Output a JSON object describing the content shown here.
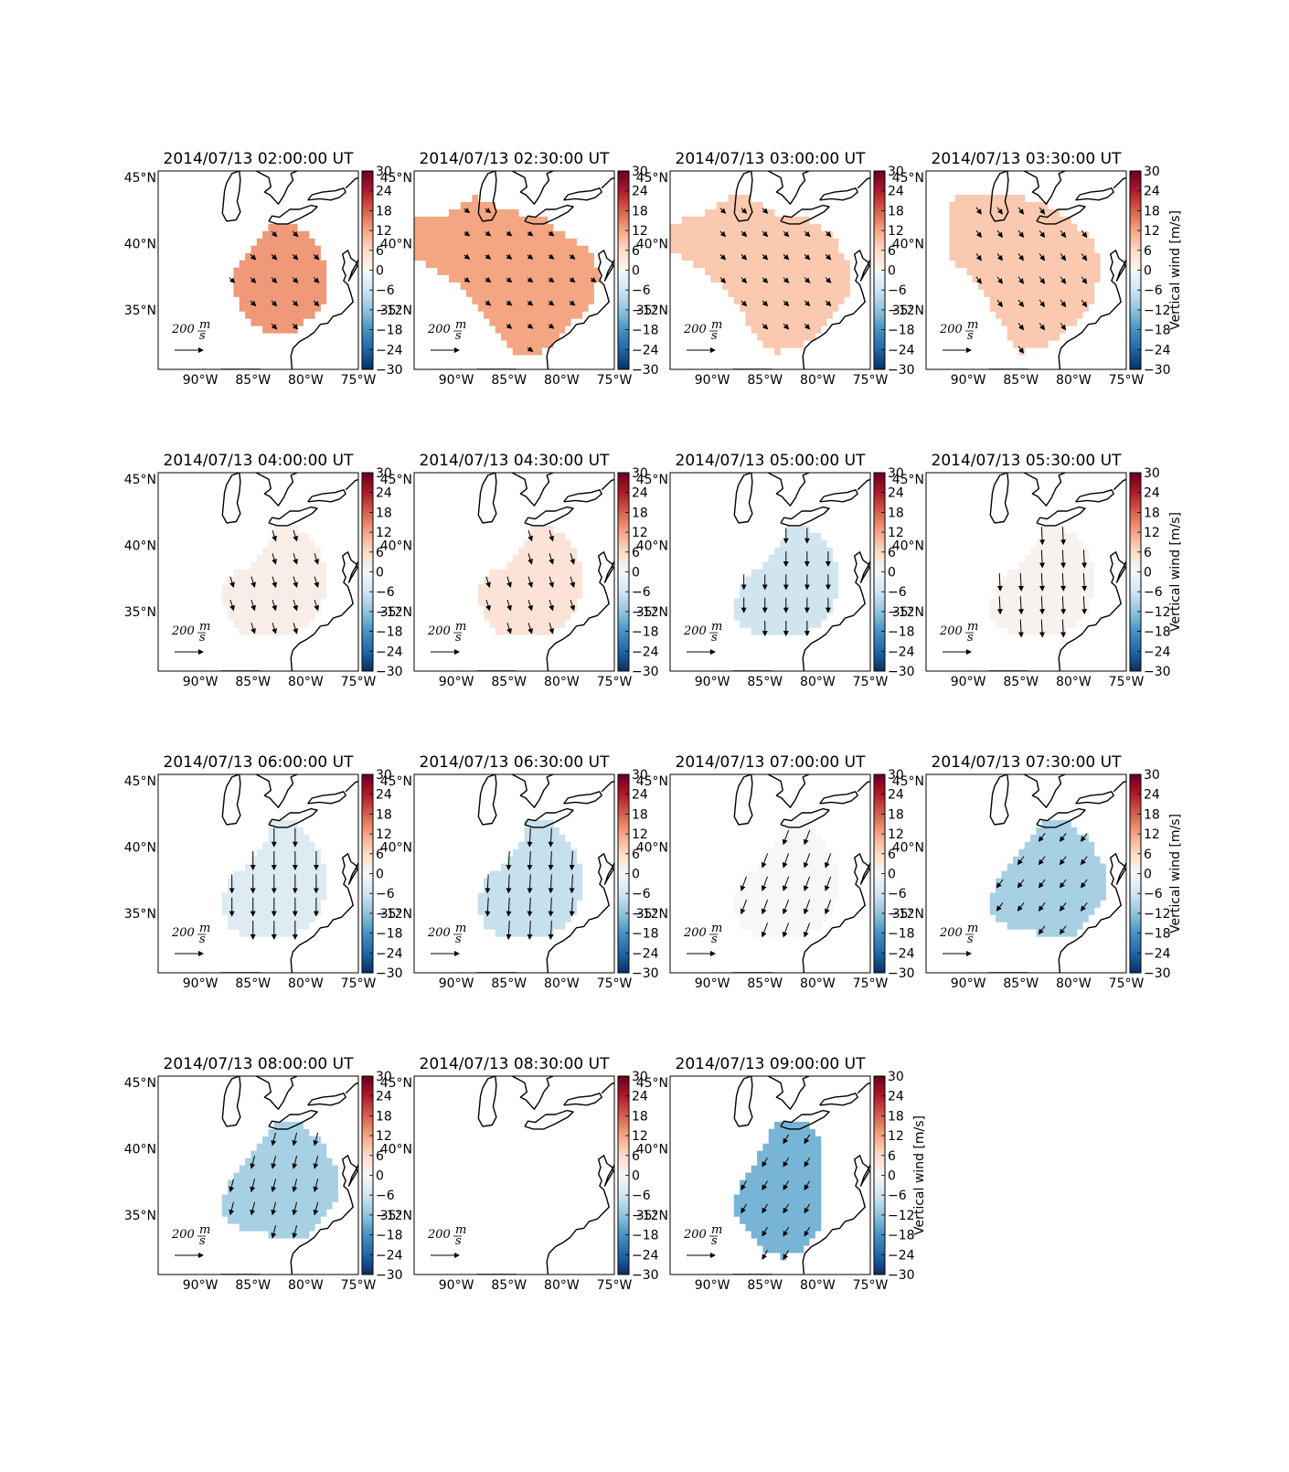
{
  "chart_data": {
    "type": "heatmap",
    "panel_layout": {
      "rows": 4,
      "cols": 4
    },
    "x_ticks": [
      "90°W",
      "85°W",
      "80°W",
      "75°W"
    ],
    "y_ticks": [
      "45°N",
      "40°N",
      "35°N"
    ],
    "lon_range": [
      -94,
      -75
    ],
    "lat_range": [
      30.5,
      45.5
    ],
    "colorbar": {
      "label": "Vertical wind [m/s]",
      "range": [
        -30,
        30
      ],
      "ticks": [
        "30",
        "24",
        "18",
        "12",
        "6",
        "0",
        "−6",
        "−12",
        "−18",
        "−24",
        "−30"
      ],
      "colormap": "RdBu_r",
      "colors": [
        "#053061",
        "#2166ac",
        "#4393c3",
        "#92c5de",
        "#d1e5f0",
        "#f7f7f7",
        "#fddbc7",
        "#f4a582",
        "#d6604d",
        "#b2182b",
        "#67001f"
      ]
    },
    "reference_vector": {
      "value": "200",
      "unit_num": "m",
      "unit_den": "s"
    },
    "panels": [
      {
        "title": "2014/07/13 02:00:00 UT",
        "vertical_wind": 13,
        "arrow_dir": [
          0.7,
          -0.7
        ],
        "arrow_len": 0.4,
        "show_colorbar_label": false
      },
      {
        "title": "2014/07/13 02:30:00 UT",
        "vertical_wind": 12,
        "arrow_dir": [
          0.8,
          -0.6
        ],
        "arrow_len": 0.35,
        "show_colorbar_label": false
      },
      {
        "title": "2014/07/13 03:00:00 UT",
        "vertical_wind": 8,
        "arrow_dir": [
          0.7,
          -0.7
        ],
        "arrow_len": 0.4,
        "show_colorbar_label": false
      },
      {
        "title": "2014/07/13 03:30:00 UT",
        "vertical_wind": 8,
        "arrow_dir": [
          0.6,
          -0.8
        ],
        "arrow_len": 0.45,
        "show_colorbar_label": true
      },
      {
        "title": "2014/07/13 04:00:00 UT",
        "vertical_wind": 2,
        "arrow_dir": [
          0.3,
          -0.95
        ],
        "arrow_len": 0.6,
        "show_colorbar_label": false
      },
      {
        "title": "2014/07/13 04:30:00 UT",
        "vertical_wind": 4,
        "arrow_dir": [
          0.3,
          -0.95
        ],
        "arrow_len": 0.6,
        "show_colorbar_label": false
      },
      {
        "title": "2014/07/13 05:00:00 UT",
        "vertical_wind": -6,
        "arrow_dir": [
          0.0,
          -1.0
        ],
        "arrow_len": 0.8,
        "show_colorbar_label": false
      },
      {
        "title": "2014/07/13 05:30:00 UT",
        "vertical_wind": 1,
        "arrow_dir": [
          0.05,
          -1.0
        ],
        "arrow_len": 0.95,
        "show_colorbar_label": true
      },
      {
        "title": "2014/07/13 06:00:00 UT",
        "vertical_wind": -4,
        "arrow_dir": [
          0.0,
          -1.0
        ],
        "arrow_len": 1.0,
        "show_colorbar_label": false
      },
      {
        "title": "2014/07/13 06:30:00 UT",
        "vertical_wind": -7,
        "arrow_dir": [
          -0.05,
          -1.0
        ],
        "arrow_len": 1.0,
        "show_colorbar_label": false
      },
      {
        "title": "2014/07/13 07:00:00 UT",
        "vertical_wind": 0,
        "arrow_dir": [
          -0.35,
          -0.95
        ],
        "arrow_len": 0.8,
        "show_colorbar_label": false
      },
      {
        "title": "2014/07/13 07:30:00 UT",
        "vertical_wind": -10,
        "arrow_dir": [
          -0.6,
          -0.8
        ],
        "arrow_len": 0.55,
        "show_colorbar_label": true
      },
      {
        "title": "2014/07/13 08:00:00 UT",
        "vertical_wind": -10,
        "arrow_dir": [
          -0.25,
          -0.97
        ],
        "arrow_len": 0.7,
        "show_colorbar_label": false
      },
      {
        "title": "2014/07/13 08:30:00 UT",
        "vertical_wind": null,
        "arrow_dir": [
          0,
          0
        ],
        "arrow_len": 0,
        "show_colorbar_label": false
      },
      {
        "title": "2014/07/13 09:00:00 UT",
        "vertical_wind": -14,
        "arrow_dir": [
          -0.5,
          -0.87
        ],
        "arrow_len": 0.55,
        "show_colorbar_label": true
      }
    ]
  }
}
